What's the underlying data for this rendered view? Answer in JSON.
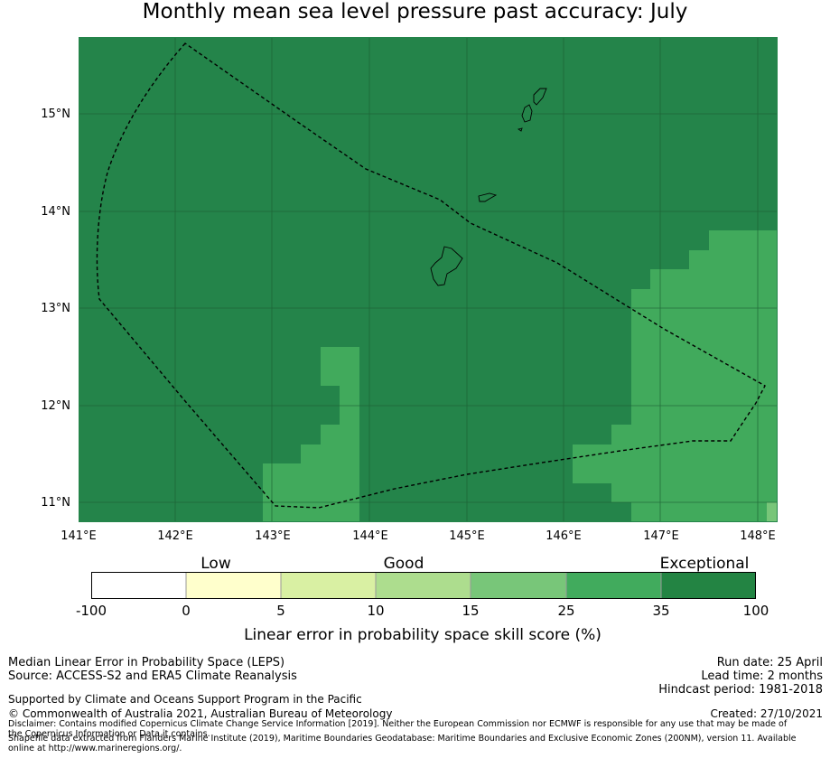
{
  "title": "Monthly mean sea level pressure past accuracy: July",
  "map": {
    "lat_labels": [
      "15°N",
      "14°N",
      "13°N",
      "12°N",
      "11°N"
    ],
    "lon_labels": [
      "141°E",
      "142°E",
      "143°E",
      "144°E",
      "145°E",
      "146°E",
      "147°E",
      "148°E"
    ],
    "extent": {
      "lon_min": 141.0,
      "lon_max": 148.2,
      "lat_min": 10.8,
      "lat_max": 15.8
    },
    "colors": {
      "exceptional": "#24844a",
      "category_25_35": "#41aa5c",
      "category_15_25": "#78c679",
      "gridline": "#1c5e33",
      "boundary": "#000000"
    }
  },
  "colorbar": {
    "quality_labels": [
      "Low",
      "Good",
      "Exceptional"
    ],
    "tick_labels": [
      "-100",
      "0",
      "5",
      "10",
      "15",
      "25",
      "35",
      "100"
    ],
    "colors": [
      "#ffffff",
      "#ffffcc",
      "#d9f0a3",
      "#addd8e",
      "#78c679",
      "#41ab5d",
      "#238443"
    ],
    "label": "Linear error in probability space skill score (%)"
  },
  "footer": {
    "left_line1": "Median Linear Error in Probability Space (LEPS)",
    "left_line2": "Source: ACCESS-S2 and ERA5 Climate Reanalysis",
    "supported": "Supported by Climate and Oceans Support Program in the Pacific",
    "copyright": "© Commonwealth of Australia 2021, Australian Bureau of Meteorology",
    "disclaimer": "Disclaimer: Contains modified Copernicus Climate Change Service Information [2019]. Neither the European Commission nor ECMWF is responsible for any use that may be made of the Copernicus Information or Data it contains.",
    "shapefile": "Shapefile data extracted from Flanders Marine Institute (2019), Maritime Boundaries Geodatabase: Maritime Boundaries and Exclusive Economic Zones (200NM), version 11. Available online at http://www.marineregions.org/.",
    "run_date": "Run date: 25 April",
    "lead_time": "Lead time: 2 months",
    "hindcast": "Hindcast period: 1981-2018",
    "created": "Created: 27/10/2021"
  }
}
